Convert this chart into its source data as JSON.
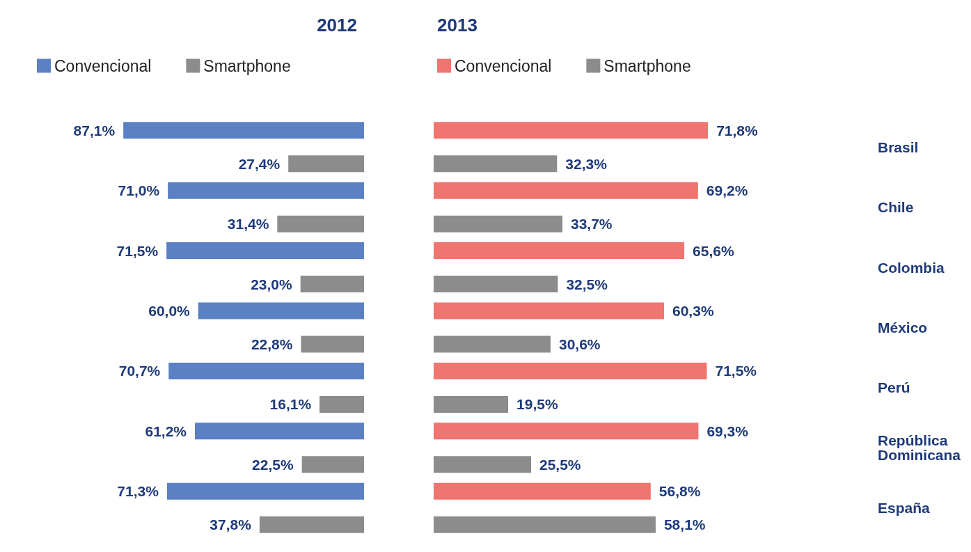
{
  "chart_data": [
    {
      "type": "bar",
      "orientation": "horizontal",
      "title": "2012",
      "legend": "top left",
      "tick_labels": false,
      "categories": [
        "Brasil",
        "Chile",
        "Colombia",
        "México",
        "Perú",
        "República Dominicana",
        "España"
      ],
      "series": [
        {
          "name": "Convencional",
          "color": "#5b80c4",
          "values": [
            87.1,
            71.0,
            71.5,
            60.0,
            70.7,
            61.2,
            71.3
          ],
          "value_labels": [
            "87,1%",
            "71,0%",
            "71,5%",
            "60,0%",
            "70,7%",
            "61,2%",
            "71,3%"
          ]
        },
        {
          "name": "Smartphone",
          "color": "#8c8c8c",
          "values": [
            27.4,
            31.4,
            23.0,
            22.8,
            16.1,
            22.5,
            37.8
          ],
          "value_labels": [
            "27,4%",
            "31,4%",
            "23,0%",
            "22,8%",
            "16,1%",
            "22,5%",
            "37,8%"
          ]
        }
      ]
    },
    {
      "type": "bar",
      "orientation": "horizontal",
      "title": "2013",
      "legend": "top left",
      "tick_labels": "y",
      "categories": [
        "Brasil",
        "Chile",
        "Colombia",
        "México",
        "Perú",
        "República Dominicana",
        "España"
      ],
      "series": [
        {
          "name": "Convencional",
          "color": "#f07470",
          "values": [
            71.8,
            69.2,
            65.6,
            60.3,
            71.5,
            69.3,
            56.8
          ],
          "value_labels": [
            "71,8%",
            "69,2%",
            "65,6%",
            "60,3%",
            "71,5%",
            "69,3%",
            "56,8%"
          ]
        },
        {
          "name": "Smartphone",
          "color": "#8c8c8c",
          "values": [
            32.3,
            33.7,
            32.5,
            30.6,
            19.5,
            25.5,
            58.1
          ],
          "value_labels": [
            "32,3%",
            "33,7%",
            "32,5%",
            "30,6%",
            "19,5%",
            "25,5%",
            "58,1%"
          ]
        }
      ]
    }
  ]
}
